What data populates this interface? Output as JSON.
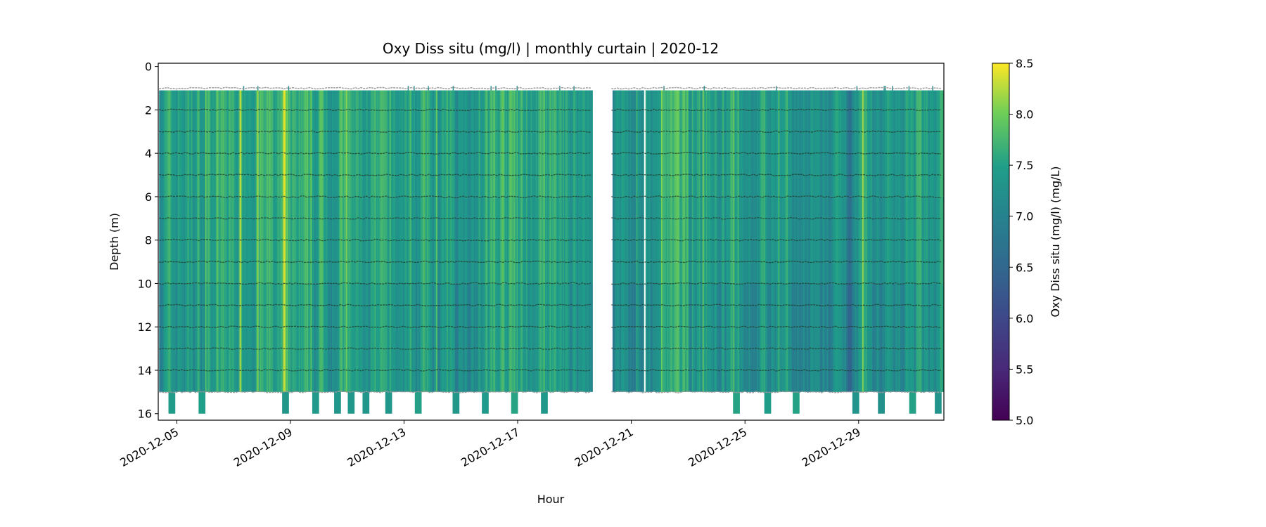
{
  "chart_data": {
    "type": "heatmap",
    "title": "Oxy Diss situ (mg/l) | monthly curtain | 2020-12",
    "xlabel": "Hour",
    "ylabel": "Depth (m)",
    "colorbar_label": "Oxy Diss situ (mg/l) (mg/L)",
    "colormap": "viridis",
    "clim": [
      5.0,
      8.5
    ],
    "colorbar_ticks": [
      "5.0",
      "5.5",
      "6.0",
      "6.5",
      "7.0",
      "7.5",
      "8.0",
      "8.5"
    ],
    "colorbar_tick_values": [
      5.0,
      5.5,
      6.0,
      6.5,
      7.0,
      7.5,
      8.0,
      8.5
    ],
    "x_ticks": [
      "2020-12-05",
      "2020-12-09",
      "2020-12-13",
      "2020-12-17",
      "2020-12-21",
      "2020-12-25",
      "2020-12-29"
    ],
    "x_tick_days": [
      5,
      9,
      13,
      17,
      21,
      25,
      29
    ],
    "xlim_days": [
      4.35,
      32.0
    ],
    "y_ticks": [
      "0",
      "2",
      "4",
      "6",
      "8",
      "10",
      "12",
      "14",
      "16"
    ],
    "y_tick_values": [
      0,
      2,
      4,
      6,
      8,
      10,
      12,
      14,
      16
    ],
    "ylim": [
      16.3,
      -0.15
    ],
    "y_inverted": true,
    "data_start_day": 4.38,
    "data_end_day": 32.0,
    "gap_days": [
      [
        19.6,
        20.3
      ]
    ],
    "depth_levels": [
      1,
      2,
      3,
      4,
      5,
      6,
      7,
      8,
      9,
      10,
      11,
      12,
      13,
      14,
      15
    ],
    "curtain_depth_range": [
      1.1,
      15.0
    ],
    "days": [
      4,
      5,
      6,
      7,
      8,
      9,
      10,
      11,
      12,
      13,
      14,
      15,
      16,
      17,
      18,
      19,
      20,
      21,
      22,
      23,
      24,
      25,
      26,
      27,
      28,
      29,
      30,
      31
    ],
    "daily_mean_oxygen": [
      7.45,
      7.5,
      7.6,
      7.7,
      7.6,
      7.5,
      7.6,
      7.5,
      7.45,
      7.5,
      7.4,
      7.5,
      7.65,
      7.5,
      7.5,
      7.45,
      7.3,
      7.2,
      7.6,
      7.5,
      7.45,
      7.4,
      7.3,
      7.2,
      7.1,
      7.3,
      7.4,
      7.5
    ],
    "deep_bins_to_16m_days": [
      4.83,
      5.89,
      8.83,
      9.89,
      10.66,
      11.14,
      11.66,
      12.46,
      13.5,
      14.83,
      15.86,
      16.89,
      17.94,
      24.7,
      25.8,
      26.8,
      28.9,
      29.8,
      30.9,
      31.8
    ]
  }
}
